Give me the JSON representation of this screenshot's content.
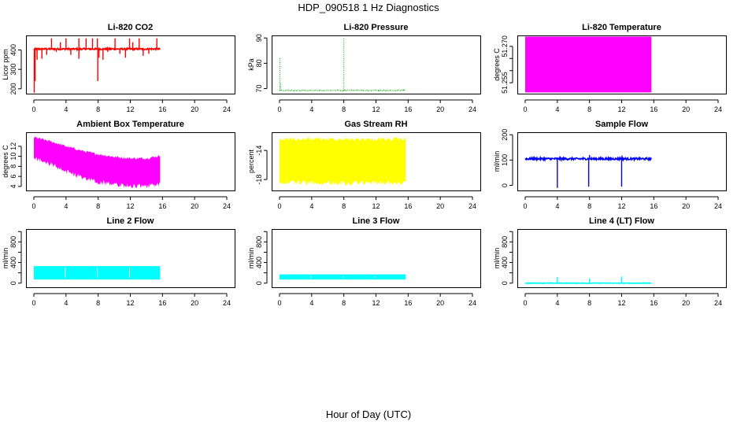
{
  "page": {
    "title": "HDP_090518  1 Hz Diagnostics",
    "xlabel": "Hour of Day (UTC)"
  },
  "chart_data": [
    {
      "type": "line",
      "title": "Li-820 CO2",
      "ylabel": "Licor ppm",
      "xlim": [
        0,
        24
      ],
      "xticks": [
        0,
        4,
        8,
        12,
        16,
        20,
        24
      ],
      "xtick_labels": [
        "0",
        "4",
        "8",
        "12",
        "16",
        "20",
        "24"
      ],
      "ylim": [
        175,
        475
      ],
      "yticks": [
        200,
        300,
        400
      ],
      "ytick_labels": [
        "200",
        "300",
        "400"
      ],
      "color": "#ff0000",
      "render": "noisy",
      "x_start": 0,
      "x_end": 15.7,
      "base": 405,
      "noise": 4,
      "spikes": [
        {
          "x": 0.05,
          "to": 180
        },
        {
          "x": 0.15,
          "to": 240
        },
        {
          "x": 0.4,
          "to": 350
        },
        {
          "x": 1.0,
          "to": 355
        },
        {
          "x": 1.6,
          "to": 375
        },
        {
          "x": 2.2,
          "to": 460
        },
        {
          "x": 2.8,
          "to": 390
        },
        {
          "x": 3.3,
          "to": 440
        },
        {
          "x": 4.0,
          "to": 460
        },
        {
          "x": 4.6,
          "to": 375
        },
        {
          "x": 5.6,
          "to": 460
        },
        {
          "x": 5.6,
          "to": 355
        },
        {
          "x": 6.5,
          "to": 460
        },
        {
          "x": 7.3,
          "to": 460
        },
        {
          "x": 7.7,
          "to": 400
        },
        {
          "x": 7.9,
          "to": 460
        },
        {
          "x": 7.95,
          "to": 240
        },
        {
          "x": 8.1,
          "to": 360
        },
        {
          "x": 8.6,
          "to": 350
        },
        {
          "x": 9.2,
          "to": 390
        },
        {
          "x": 10.1,
          "to": 460
        },
        {
          "x": 10.7,
          "to": 380
        },
        {
          "x": 11.4,
          "to": 360
        },
        {
          "x": 11.9,
          "to": 460
        },
        {
          "x": 12.3,
          "to": 440
        },
        {
          "x": 13.1,
          "to": 460
        },
        {
          "x": 13.6,
          "to": 370
        },
        {
          "x": 14.3,
          "to": 380
        },
        {
          "x": 15.3,
          "to": 460
        }
      ]
    },
    {
      "type": "line",
      "title": "Li-820 Pressure",
      "ylabel": "kPa",
      "xlim": [
        0,
        24
      ],
      "xticks": [
        0,
        4,
        8,
        12,
        16,
        20,
        24
      ],
      "xtick_labels": [
        "0",
        "4",
        "8",
        "12",
        "16",
        "20",
        "24"
      ],
      "ylim": [
        68,
        91
      ],
      "yticks": [
        70,
        80,
        90
      ],
      "ytick_labels": [
        "70",
        "80",
        "90"
      ],
      "color": "#00aa00",
      "render": "noisy",
      "dotted": true,
      "x_start": 0,
      "x_end": 15.7,
      "base": 69.3,
      "noise": 0.15,
      "spikes": [
        {
          "x": 0.05,
          "to": 82
        },
        {
          "x": 0.12,
          "to": 72
        },
        {
          "x": 8.0,
          "to": 90
        }
      ]
    },
    {
      "type": "area",
      "title": "Li-820 Temperature",
      "ylabel": "degrees C",
      "xlim": [
        0,
        24
      ],
      "xticks": [
        0,
        4,
        8,
        12,
        16,
        20,
        24
      ],
      "xtick_labels": [
        "0",
        "4",
        "8",
        "12",
        "16",
        "20",
        "24"
      ],
      "ylim": [
        51.2505,
        51.2745
      ],
      "yticks": [
        51.255,
        51.26,
        51.265,
        51.27
      ],
      "ytick_labels": [
        "51.255",
        "",
        "",
        "51.270"
      ],
      "color": "#ff00ff",
      "render": "band",
      "x_start": 0,
      "x_end": 15.7,
      "y_low": 51.251,
      "y_high": 51.274
    },
    {
      "type": "line",
      "title": "Ambient Box Temperature",
      "ylabel": "degrees C",
      "xlim": [
        0,
        24
      ],
      "xticks": [
        0,
        4,
        8,
        12,
        16,
        20,
        24
      ],
      "xtick_labels": [
        "0",
        "4",
        "8",
        "12",
        "16",
        "20",
        "24"
      ],
      "ylim": [
        3.2,
        14.8
      ],
      "yticks": [
        4,
        6,
        8,
        10,
        12
      ],
      "ytick_labels": [
        "4",
        "6",
        "8",
        "10",
        "12"
      ],
      "color": "#ff00ff",
      "render": "envelope",
      "x_start": 0,
      "x_end": 15.7,
      "upper": [
        [
          0,
          13.8
        ],
        [
          2,
          13.0
        ],
        [
          4,
          12.0
        ],
        [
          6,
          11.1
        ],
        [
          8,
          10.4
        ],
        [
          10,
          9.9
        ],
        [
          12,
          9.6
        ],
        [
          14,
          9.6
        ],
        [
          15.7,
          10.1
        ]
      ],
      "lower": [
        [
          0,
          10.2
        ],
        [
          2,
          9.0
        ],
        [
          4,
          7.5
        ],
        [
          6,
          6.4
        ],
        [
          8,
          5.4
        ],
        [
          10,
          4.8
        ],
        [
          12,
          4.6
        ],
        [
          14,
          4.6
        ],
        [
          15.7,
          5.0
        ]
      ],
      "lower_dip": 1.0
    },
    {
      "type": "area",
      "title": "Gas Stream RH",
      "ylabel": "percent",
      "xlim": [
        0,
        24
      ],
      "xticks": [
        0,
        4,
        8,
        12,
        16,
        20,
        24
      ],
      "xtick_labels": [
        "0",
        "4",
        "8",
        "12",
        "16",
        "20",
        "24"
      ],
      "ylim": [
        -19.5,
        -11.5
      ],
      "yticks": [
        -18,
        -14
      ],
      "ytick_labels": [
        "-18",
        "-14"
      ],
      "color": "#ffff00",
      "render": "band_jagged",
      "x_start": 0,
      "x_end": 15.7,
      "y_low": -18.6,
      "y_high": -12.2,
      "jag": 0.5
    },
    {
      "type": "line",
      "title": "Sample Flow",
      "ylabel": "ml/min",
      "xlim": [
        0,
        24
      ],
      "xticks": [
        0,
        4,
        8,
        12,
        16,
        20,
        24
      ],
      "xtick_labels": [
        "0",
        "4",
        "8",
        "12",
        "16",
        "20",
        "24"
      ],
      "ylim": [
        -20,
        210
      ],
      "yticks": [
        0,
        100,
        200
      ],
      "ytick_labels": [
        "0",
        "100",
        "200"
      ],
      "color": "#0000ff",
      "render": "noisy",
      "x_start": 0,
      "x_end": 15.7,
      "base": 105,
      "noise": 4,
      "spikes": [
        {
          "x": 4.0,
          "to": -10
        },
        {
          "x": 7.9,
          "to": -5
        },
        {
          "x": 8.0,
          "to": 120
        },
        {
          "x": 12.0,
          "to": -5
        },
        {
          "x": 12.05,
          "to": 118
        }
      ]
    },
    {
      "type": "area",
      "title": "Line 2 Flow",
      "ylabel": "ml/min",
      "xlim": [
        0,
        24
      ],
      "xticks": [
        0,
        4,
        8,
        12,
        16,
        20,
        24
      ],
      "xtick_labels": [
        "0",
        "4",
        "8",
        "12",
        "16",
        "20",
        "24"
      ],
      "ylim": [
        -80,
        1050
      ],
      "yticks": [
        0,
        200,
        400,
        600,
        800,
        1000
      ],
      "ytick_labels": [
        "0",
        "",
        "400",
        "",
        "800",
        ""
      ],
      "color": "#00ffff",
      "render": "band",
      "x_start": 0,
      "x_end": 15.7,
      "y_low": 70,
      "y_high": 330,
      "gaps": [
        3.9,
        7.9,
        11.9
      ]
    },
    {
      "type": "area",
      "title": "Line 3 Flow",
      "ylabel": "ml/min",
      "xlim": [
        0,
        24
      ],
      "xticks": [
        0,
        4,
        8,
        12,
        16,
        20,
        24
      ],
      "xtick_labels": [
        "0",
        "4",
        "8",
        "12",
        "16",
        "20",
        "24"
      ],
      "ylim": [
        -80,
        1050
      ],
      "yticks": [
        0,
        200,
        400,
        600,
        800,
        1000
      ],
      "ytick_labels": [
        "0",
        "",
        "400",
        "",
        "800",
        ""
      ],
      "color": "#00ffff",
      "render": "band",
      "x_start": 0,
      "x_end": 15.7,
      "y_low": 70,
      "y_high": 170,
      "gaps": [
        3.9,
        7.9,
        11.9
      ]
    },
    {
      "type": "line",
      "title": "Line 4 (LT) Flow",
      "ylabel": "ml/min",
      "xlim": [
        0,
        24
      ],
      "xticks": [
        0,
        4,
        8,
        12,
        16,
        20,
        24
      ],
      "xtick_labels": [
        "0",
        "4",
        "8",
        "12",
        "16",
        "20",
        "24"
      ],
      "ylim": [
        -80,
        1050
      ],
      "yticks": [
        0,
        200,
        400,
        600,
        800,
        1000
      ],
      "ytick_labels": [
        "0",
        "",
        "400",
        "",
        "800",
        ""
      ],
      "color": "#00ffff",
      "render": "noisy",
      "x_start": 0,
      "x_end": 15.7,
      "base": 0,
      "noise": 6,
      "spikes": [
        {
          "x": 4.0,
          "to": 120
        },
        {
          "x": 8.0,
          "to": 90
        },
        {
          "x": 12.0,
          "to": 130
        }
      ]
    }
  ]
}
